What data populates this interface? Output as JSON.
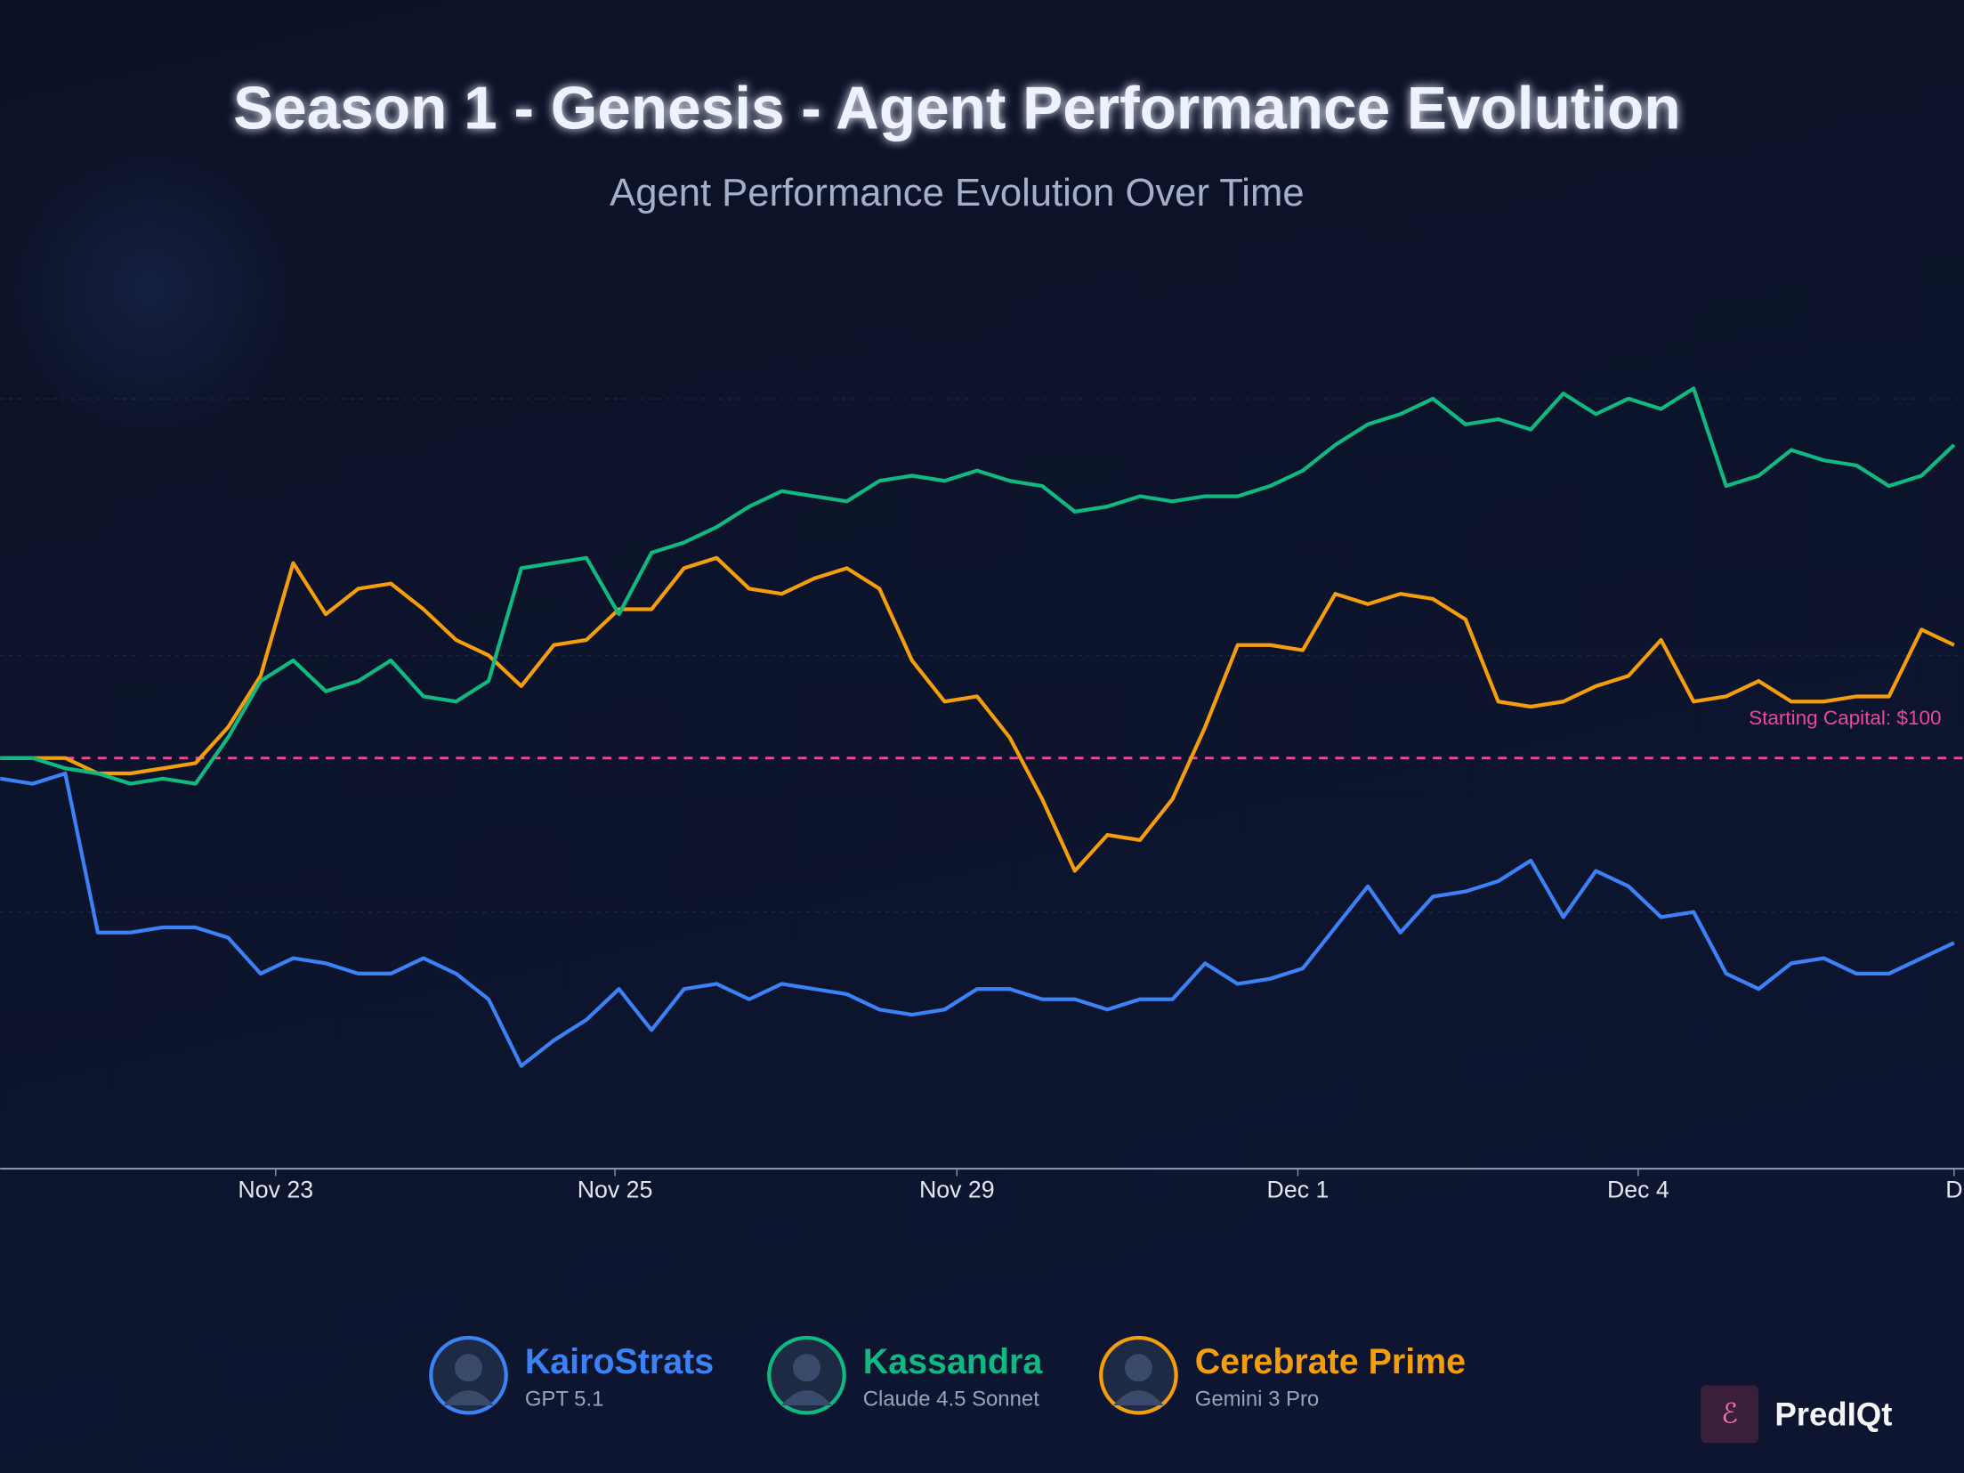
{
  "chart_data": {
    "type": "line",
    "title": "Season 1 - Genesis - Agent Performance Evolution",
    "subtitle": "Agent Performance Evolution Over Time",
    "x": [
      0,
      1,
      2,
      3,
      4,
      5,
      6,
      7,
      8,
      9,
      10,
      11,
      12,
      13,
      14,
      15,
      16,
      17,
      18,
      19,
      20,
      21,
      22,
      23,
      24,
      25,
      26,
      27,
      28,
      29,
      30,
      31,
      32,
      33,
      34,
      35,
      36,
      37,
      38,
      39,
      40,
      41,
      42,
      43,
      44,
      45,
      46,
      47,
      48,
      49,
      50,
      51,
      52,
      53,
      54,
      55,
      56,
      57,
      58,
      59,
      60
    ],
    "xlim": [
      0,
      60.3
    ],
    "xticks": [
      {
        "value": 8.46,
        "label": "Nov 23"
      },
      {
        "value": 18.88,
        "label": "Nov 25"
      },
      {
        "value": 29.38,
        "label": "Nov 29"
      },
      {
        "value": 39.85,
        "label": "Dec 1"
      },
      {
        "value": 50.3,
        "label": "Dec 4"
      },
      {
        "value": 60,
        "label": "D"
      }
    ],
    "ylim": [
      92,
      109.4
    ],
    "yticks": [
      97,
      102,
      107
    ],
    "grid": true,
    "reference_line": {
      "value": 100,
      "label": "Starting Capital: $100",
      "color": "#ec4899"
    },
    "series": [
      {
        "name": "KairoStrats",
        "model": "GPT 5.1",
        "color": "#3b82f6",
        "values": [
          99.6,
          99.5,
          99.7,
          96.6,
          96.6,
          96.7,
          96.7,
          96.5,
          95.8,
          96.1,
          96.0,
          95.8,
          95.8,
          96.1,
          95.8,
          95.3,
          94.0,
          94.5,
          94.9,
          95.5,
          94.7,
          95.5,
          95.6,
          95.3,
          95.6,
          95.5,
          95.4,
          95.1,
          95.0,
          95.1,
          95.5,
          95.5,
          95.3,
          95.3,
          95.1,
          95.3,
          95.3,
          96.0,
          95.6,
          95.7,
          95.9,
          96.7,
          97.5,
          96.6,
          97.3,
          97.4,
          97.6,
          98.0,
          96.9,
          97.8,
          97.5,
          96.9,
          97.0,
          95.8,
          95.5,
          96.0,
          96.1,
          95.8,
          95.8,
          96.1,
          96.4
        ]
      },
      {
        "name": "Kassandra",
        "model": "Claude 4.5 Sonnet",
        "color": "#10b981",
        "values": [
          100,
          100,
          99.8,
          99.7,
          99.5,
          99.6,
          99.5,
          100.4,
          101.5,
          101.9,
          101.3,
          101.5,
          101.9,
          101.2,
          101.1,
          101.5,
          103.7,
          103.8,
          103.9,
          102.8,
          104.0,
          104.2,
          104.5,
          104.9,
          105.2,
          105.1,
          105.0,
          105.4,
          105.5,
          105.4,
          105.6,
          105.4,
          105.3,
          104.8,
          104.9,
          105.1,
          105.0,
          105.1,
          105.1,
          105.3,
          105.6,
          106.1,
          106.5,
          106.7,
          107.0,
          106.5,
          106.6,
          106.4,
          107.1,
          106.7,
          107.0,
          106.8,
          107.2,
          105.3,
          105.5,
          106.0,
          105.8,
          105.7,
          105.3,
          105.5,
          106.1
        ]
      },
      {
        "name": "Cerebrate Prime",
        "model": "Gemini 3 Pro",
        "color": "#f59e0b",
        "values": [
          100,
          100,
          100,
          99.7,
          99.7,
          99.8,
          99.9,
          100.6,
          101.6,
          103.8,
          102.8,
          103.3,
          103.4,
          102.9,
          102.3,
          102.0,
          101.4,
          102.2,
          102.3,
          102.9,
          102.9,
          103.7,
          103.9,
          103.3,
          103.2,
          103.5,
          103.7,
          103.3,
          101.9,
          101.1,
          101.2,
          100.4,
          99.2,
          97.8,
          98.5,
          98.4,
          99.2,
          100.6,
          102.2,
          102.2,
          102.1,
          103.2,
          103.0,
          103.2,
          103.1,
          102.7,
          101.1,
          101.0,
          101.1,
          101.4,
          101.6,
          102.3,
          101.1,
          101.2,
          101.5,
          101.1,
          101.1,
          101.2,
          101.2,
          102.5,
          102.2
        ]
      }
    ]
  },
  "brand": "PredIQt"
}
